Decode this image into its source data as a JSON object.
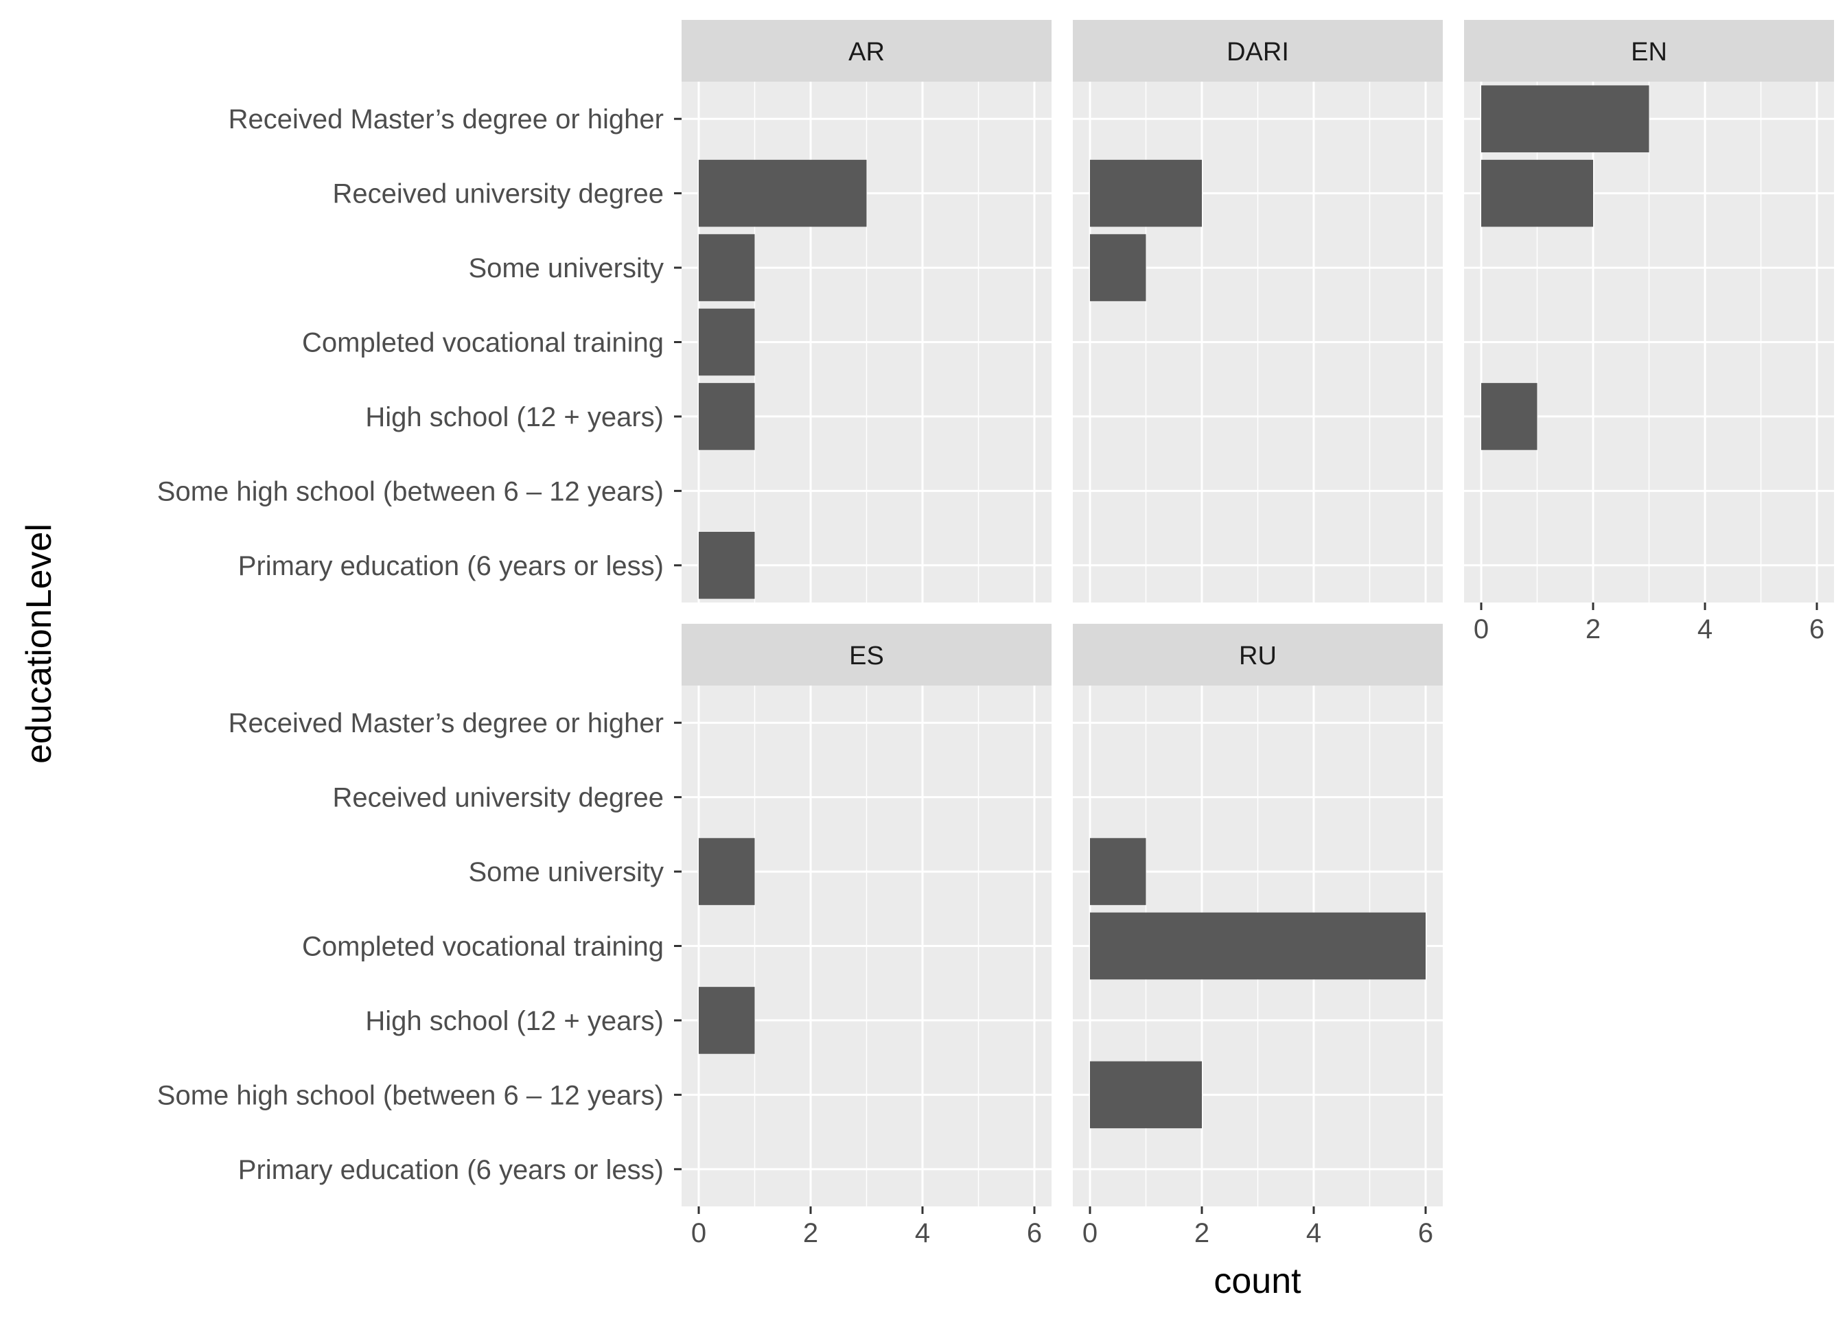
{
  "chart_data": {
    "type": "bar",
    "orientation": "horizontal",
    "xlabel": "count",
    "ylabel": "educationLevel",
    "xlim": [
      0,
      6
    ],
    "x_ticks": [
      0,
      2,
      4,
      6
    ],
    "grid": true,
    "categories": [
      "Received Master’s degree or higher",
      "Received university degree",
      "Some university",
      "Completed vocational training",
      "High school (12 + years)",
      "Some high school (between 6 – 12 years)",
      "Primary education (6 years or less)"
    ],
    "panels": [
      {
        "name": "AR",
        "values": [
          0,
          3,
          1,
          1,
          1,
          0,
          1
        ]
      },
      {
        "name": "DARI",
        "values": [
          0,
          2,
          1,
          0,
          0,
          0,
          0
        ]
      },
      {
        "name": "EN",
        "values": [
          3,
          2,
          0,
          0,
          1,
          0,
          0
        ]
      },
      {
        "name": "ES",
        "values": [
          0,
          0,
          1,
          0,
          1,
          0,
          0
        ]
      },
      {
        "name": "RU",
        "values": [
          0,
          0,
          1,
          6,
          0,
          2,
          0
        ]
      }
    ],
    "colors": {
      "bar": "#595959",
      "panel_bg": "#ebebeb",
      "strip_bg": "#d9d9d9",
      "grid": "#ffffff",
      "tick_text": "#4d4d4d",
      "strip_text": "#1a1a1a",
      "axis_title": "#000000"
    }
  }
}
